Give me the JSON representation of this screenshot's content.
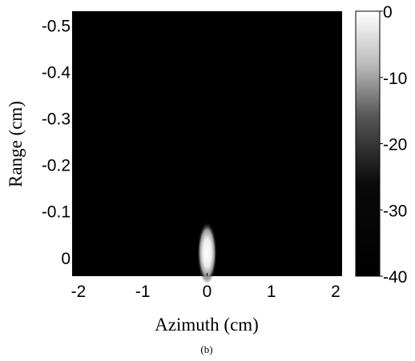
{
  "chart_data": {
    "type": "heatmap",
    "xlabel": "Azimuth (cm)",
    "ylabel": "Range (cm)",
    "caption": "(b)",
    "xlim": [
      -2.1,
      2.1
    ],
    "ylim": [
      0.04,
      -0.53
    ],
    "x_ticks": [
      -2,
      -1,
      0,
      1,
      2
    ],
    "x_tick_labels": [
      "-2",
      "-1",
      "0",
      "1",
      "2"
    ],
    "y_ticks": [
      -0.5,
      -0.4,
      -0.3,
      -0.2,
      -0.1,
      0
    ],
    "y_tick_labels": [
      "-0.5",
      "-0.4",
      "-0.3",
      "-0.2",
      "-0.1",
      "0"
    ],
    "colorbar": {
      "range": [
        -40,
        0
      ],
      "ticks": [
        0,
        -10,
        -20,
        -30,
        -40
      ],
      "tick_labels": [
        "0",
        "-10",
        "-20",
        "-30",
        "-40"
      ],
      "colormap": "gray"
    },
    "background_value": -40,
    "peaks": [
      {
        "azimuth": 0,
        "range": 0,
        "value": 0,
        "sigma_azimuth": 0.05,
        "sigma_range": 0.022
      }
    ]
  },
  "colors": {
    "min": "#000000",
    "max": "#ffffff"
  }
}
